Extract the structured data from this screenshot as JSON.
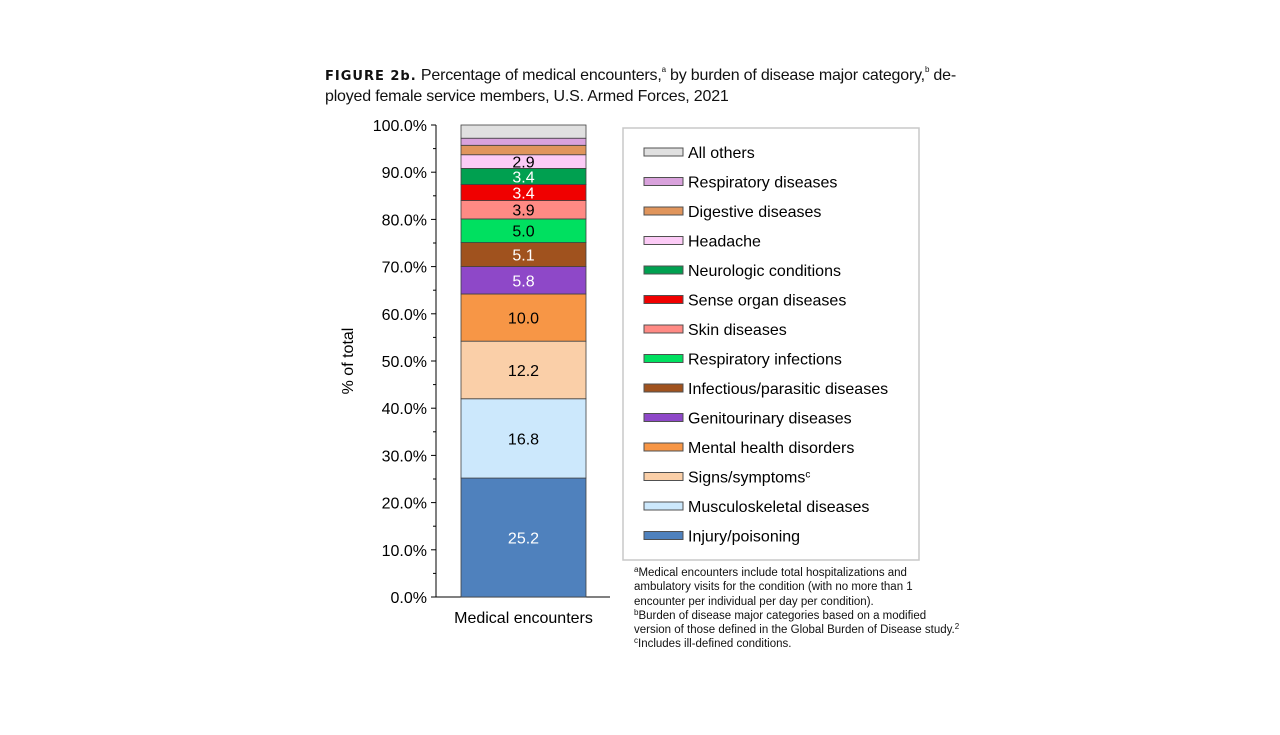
{
  "title": {
    "figure_label": "FIGURE 2b.",
    "text_1": " Percentage of medical encounters,",
    "sup_a": "a",
    "text_2": " by burden of disease major category,",
    "sup_b": "b",
    "text_3": " de-ployed female service members, U.S. Armed Forces, 2021"
  },
  "chart_data": {
    "type": "stacked-bar",
    "categories": [
      "Medical encounters"
    ],
    "ylabel": "% of total",
    "xlabel": "",
    "ylim": [
      0,
      100
    ],
    "yticks": [
      "0.0%",
      "10.0%",
      "20.0%",
      "30.0%",
      "40.0%",
      "50.0%",
      "60.0%",
      "70.0%",
      "80.0%",
      "90.0%",
      "100.0%"
    ],
    "legend_position": "right",
    "series": [
      {
        "name": "Injury/poisoning",
        "value": 25.2,
        "label": "25.2",
        "color": "#4f81bd",
        "text_color": "#ffffff"
      },
      {
        "name": "Musculoskeletal diseases",
        "value": 16.8,
        "label": "16.8",
        "color": "#cce8fc",
        "text_color": "#000000"
      },
      {
        "name": "Signs/symptoms",
        "sup": "c",
        "value": 12.2,
        "label": "12.2",
        "color": "#facfa8",
        "text_color": "#000000"
      },
      {
        "name": "Mental health disorders",
        "value": 10.0,
        "label": "10.0",
        "color": "#f79646",
        "text_color": "#000000"
      },
      {
        "name": "Genitourinary diseases",
        "value": 5.8,
        "label": "5.8",
        "color": "#8e48c8",
        "text_color": "#ffffff"
      },
      {
        "name": "Infectious/parasitic diseases",
        "value": 5.1,
        "label": "5.1",
        "color": "#a0521e",
        "text_color": "#ffffff"
      },
      {
        "name": "Respiratory infections",
        "value": 5.0,
        "label": "5.0",
        "color": "#00e060",
        "text_color": "#000000"
      },
      {
        "name": "Skin diseases",
        "value": 3.9,
        "label": "3.9",
        "color": "#ff8a84",
        "text_color": "#000000"
      },
      {
        "name": "Sense organ diseases",
        "value": 3.4,
        "label": "3.4",
        "color": "#f00000",
        "text_color": "#ffffff"
      },
      {
        "name": "Neurologic conditions",
        "value": 3.4,
        "label": "3.4",
        "color": "#00a050",
        "text_color": "#ffffff"
      },
      {
        "name": "Headache",
        "value": 2.9,
        "label": "2.9",
        "color": "#fccbf6",
        "text_color": "#000000"
      },
      {
        "name": "Digestive diseases",
        "value": 2.0,
        "label": null,
        "color": "#e0955c",
        "text_color": "#000000"
      },
      {
        "name": "Respiratory diseases",
        "value": 1.5,
        "label": null,
        "color": "#d9a2dc",
        "text_color": "#000000"
      },
      {
        "name": "All others",
        "value": 2.8,
        "label": null,
        "color": "#e0e0e0",
        "text_color": "#000000"
      }
    ]
  },
  "footnotes": [
    {
      "mark": "a",
      "text": "Medical encounters include total hospitalizations and ambulatory visits for the condition (with no more than 1 encounter per individual per day per condition)."
    },
    {
      "mark": "b",
      "text": "Burden of disease major categories based on a modified version of those defined in the Global Burden of Disease study.",
      "ref": "2"
    },
    {
      "mark": "c",
      "text": "Includes ill-defined conditions."
    }
  ]
}
